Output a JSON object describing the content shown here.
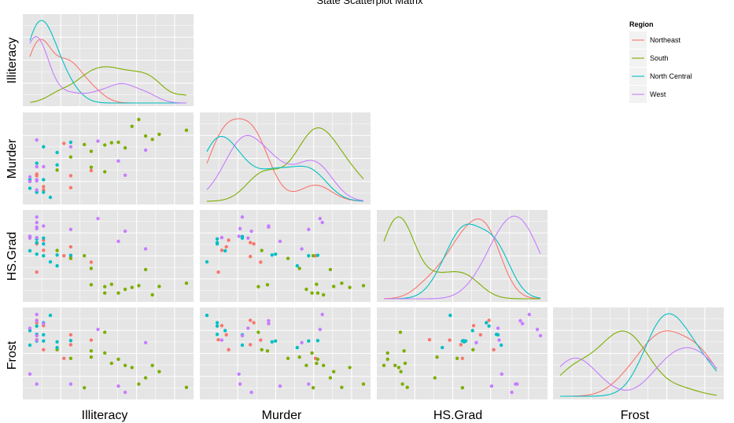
{
  "chart_data": {
    "type": "scatter",
    "title": "State Scatterplot Matrix",
    "variables": [
      "Illiteracy",
      "Murder",
      "HS.Grad",
      "Frost"
    ],
    "ranges": {
      "Illiteracy": [
        0.5,
        2.8
      ],
      "Murder": [
        1.4,
        15.1
      ],
      "HS.Grad": [
        37.8,
        67.3
      ],
      "Frost": [
        0,
        188
      ]
    },
    "legend": {
      "title": "Region",
      "position": "top-right",
      "entries": [
        "Northeast",
        "South",
        "North Central",
        "West"
      ]
    },
    "colors": {
      "Northeast": "#F8766D",
      "South": "#7CAE00",
      "North Central": "#00BFC4",
      "West": "#C77CFF",
      "panel": "#E5E5E5",
      "grid": "#FFFFFF"
    },
    "points": {
      "Northeast": {
        "Illiteracy": [
          1.1,
          0.7,
          0.7,
          1.1,
          0.6,
          1.0,
          1.4,
          0.6,
          0.6
        ],
        "Murder": [
          3.1,
          2.7,
          3.3,
          5.2,
          5.2,
          10.9,
          6.1,
          2.4,
          5.5
        ],
        "HS.Grad": [
          56.0,
          54.7,
          58.5,
          52.3,
          57.6,
          52.6,
          50.2,
          46.4,
          57.1
        ],
        "Frost": [
          139,
          161,
          103,
          115,
          174,
          82,
          126,
          127,
          168
        ]
      },
      "South": {
        "Illiteracy": [
          2.1,
          1.9,
          0.9,
          1.3,
          2.0,
          1.6,
          2.8,
          2.4,
          1.8,
          1.1,
          2.3,
          1.7,
          2.2,
          1.4,
          1.4,
          1.6
        ],
        "Murder": [
          15.1,
          10.1,
          6.2,
          10.7,
          13.9,
          10.6,
          13.2,
          12.5,
          11.1,
          8.5,
          11.6,
          11.0,
          12.2,
          9.5,
          6.7,
          5.9
        ],
        "HS.Grad": [
          41.3,
          39.9,
          54.6,
          52.6,
          40.6,
          38.5,
          42.2,
          41.0,
          38.5,
          51.6,
          37.8,
          41.8,
          47.4,
          47.8,
          41.6,
          40.9
        ],
        "Frost": [
          20,
          65,
          103,
          11,
          60,
          95,
          12,
          50,
          80,
          82,
          65,
          70,
          35,
          85,
          100,
          145
        ]
      },
      "North Central": {
        "Illiteracy": [
          0.7,
          0.9,
          0.6,
          0.5,
          1.1,
          0.6,
          0.9,
          0.7,
          0.8,
          0.6,
          0.7,
          0.5
        ],
        "Murder": [
          10.3,
          7.1,
          2.3,
          4.5,
          11.1,
          2.3,
          9.3,
          4.5,
          1.4,
          7.4,
          2.3,
          3.0
        ],
        "HS.Grad": [
          52.6,
          52.9,
          59.0,
          59.9,
          52.8,
          57.6,
          48.8,
          59.3,
          50.3,
          53.2,
          57.1,
          54.5
        ],
        "Frost": [
          124,
          122,
          140,
          114,
          125,
          160,
          108,
          139,
          186,
          124,
          168,
          149
        ]
      },
      "West": {
        "Illiteracy": [
          1.5,
          1.8,
          1.1,
          0.7,
          1.9,
          0.6,
          2.2,
          0.5,
          0.6,
          0.5,
          0.6,
          0.6,
          0.6
        ],
        "Murder": [
          11.3,
          7.8,
          10.3,
          6.8,
          5.3,
          2.7,
          9.7,
          5.0,
          11.5,
          4.2,
          4.5,
          6.8,
          4.3
        ],
        "HS.Grad": [
          66.7,
          58.1,
          62.6,
          63.9,
          61.9,
          59.5,
          55.2,
          59.3,
          65.2,
          60.0,
          67.3,
          63.5,
          62.9
        ],
        "Frost": [
          152,
          15,
          20,
          166,
          0,
          126,
          120,
          155,
          188,
          44,
          137,
          173,
          20
        ]
      }
    },
    "density_bandwidth": {
      "Illiteracy": 0.18,
      "Murder": 1.4,
      "HS.Grad": 2.8,
      "Frost": 22
    }
  }
}
